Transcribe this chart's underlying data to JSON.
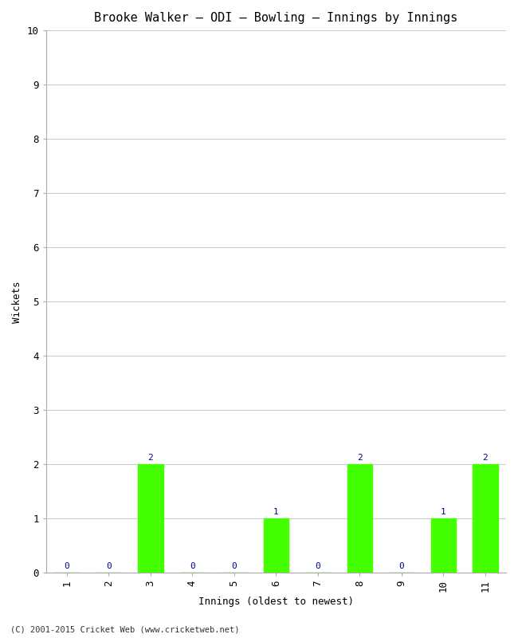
{
  "title": "Brooke Walker – ODI – Bowling – Innings by Innings",
  "xlabel": "Innings (oldest to newest)",
  "ylabel": "Wickets",
  "categories": [
    1,
    2,
    3,
    4,
    5,
    6,
    7,
    8,
    9,
    10,
    11
  ],
  "values": [
    0,
    0,
    2,
    0,
    0,
    1,
    0,
    2,
    0,
    1,
    2
  ],
  "bar_color": "#44ff00",
  "bar_edge_color": "#44ff00",
  "label_color": "#000099",
  "ylim": [
    0,
    10
  ],
  "yticks": [
    0,
    1,
    2,
    3,
    4,
    5,
    6,
    7,
    8,
    9,
    10
  ],
  "background_color": "#ffffff",
  "grid_color": "#cccccc",
  "title_fontsize": 11,
  "axis_label_fontsize": 9,
  "tick_fontsize": 9,
  "value_label_fontsize": 8,
  "footer": "(C) 2001-2015 Cricket Web (www.cricketweb.net)",
  "footer_fontsize": 7.5,
  "font_family": "monospace"
}
